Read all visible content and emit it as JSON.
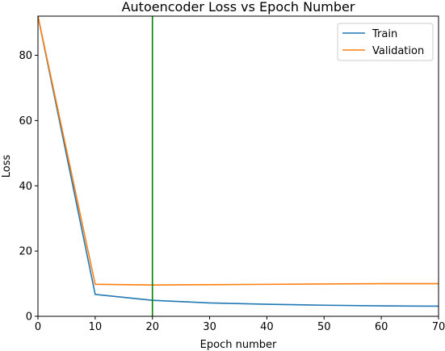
{
  "chart_data": {
    "type": "line",
    "title": "Autoencoder Loss vs Epoch Number",
    "xlabel": "Epoch number",
    "ylabel": "Loss",
    "xlim": [
      0,
      70
    ],
    "ylim": [
      0,
      92
    ],
    "xticks": [
      0,
      10,
      20,
      30,
      40,
      50,
      60,
      70
    ],
    "yticks": [
      0,
      20,
      40,
      60,
      80
    ],
    "grid": false,
    "legend": "top-right",
    "x": [
      0,
      10,
      20,
      30,
      40,
      50,
      60,
      70
    ],
    "series": [
      {
        "name": "Train",
        "color": "#1f77b4",
        "values": [
          92,
          6.7,
          4.9,
          4.1,
          3.7,
          3.4,
          3.2,
          3.1
        ]
      },
      {
        "name": "Validation",
        "color": "#ff7f0e",
        "values": [
          92,
          9.8,
          9.6,
          9.7,
          9.8,
          9.9,
          10.0,
          10.0
        ]
      }
    ],
    "vline": {
      "x": 20,
      "color": "#008000"
    }
  }
}
